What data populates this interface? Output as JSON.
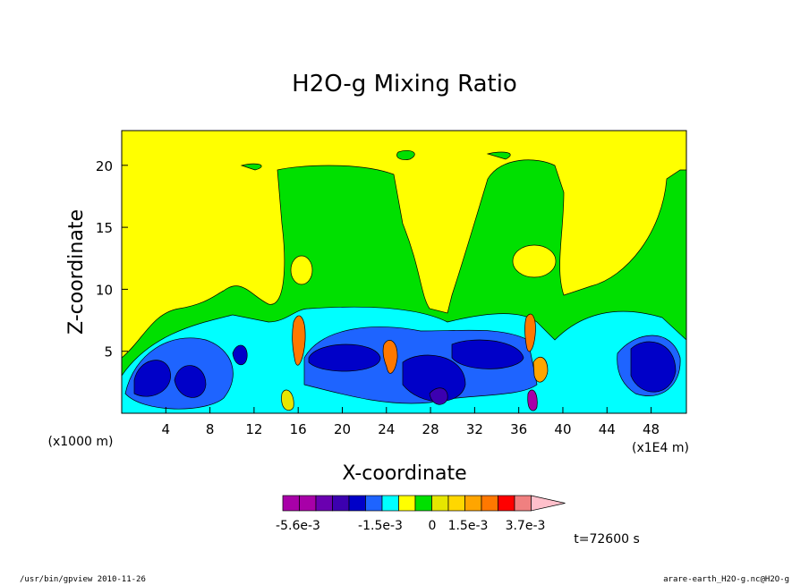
{
  "chart_data": {
    "type": "heatmap",
    "title": "H2O-g Mixing Ratio",
    "xlabel": "X-coordinate",
    "ylabel": "Z-coordinate",
    "x_unit_left": "(x1000 m)",
    "x_unit_right": "(x1E4 m)",
    "x_ticks": [
      "4",
      "8",
      "12",
      "16",
      "20",
      "24",
      "28",
      "32",
      "36",
      "40",
      "44",
      "48"
    ],
    "y_ticks": [
      "5",
      "10",
      "15",
      "20"
    ],
    "xlim": [
      0,
      51.2
    ],
    "ylim": [
      0,
      22.8
    ],
    "colorbar": {
      "colors": [
        "#a800a8",
        "#a800a8",
        "#6a00b0",
        "#3c00b0",
        "#0000c8",
        "#1e64ff",
        "#00ffff",
        "#ffff00",
        "#00e000",
        "#e6e600",
        "#ffd700",
        "#ffa500",
        "#ff7800",
        "#ff0000",
        "#f08080",
        "#ffc0cb"
      ],
      "labels": [
        "-5.6e-3",
        "-1.5e-3",
        "0",
        "1.5e-3",
        "3.7e-3"
      ]
    },
    "time_label": "t=72600 s"
  },
  "footer": {
    "left": "/usr/bin/gpview  2010-11-26",
    "right": "arare-earth_H2O-g.nc@H2O-g"
  }
}
